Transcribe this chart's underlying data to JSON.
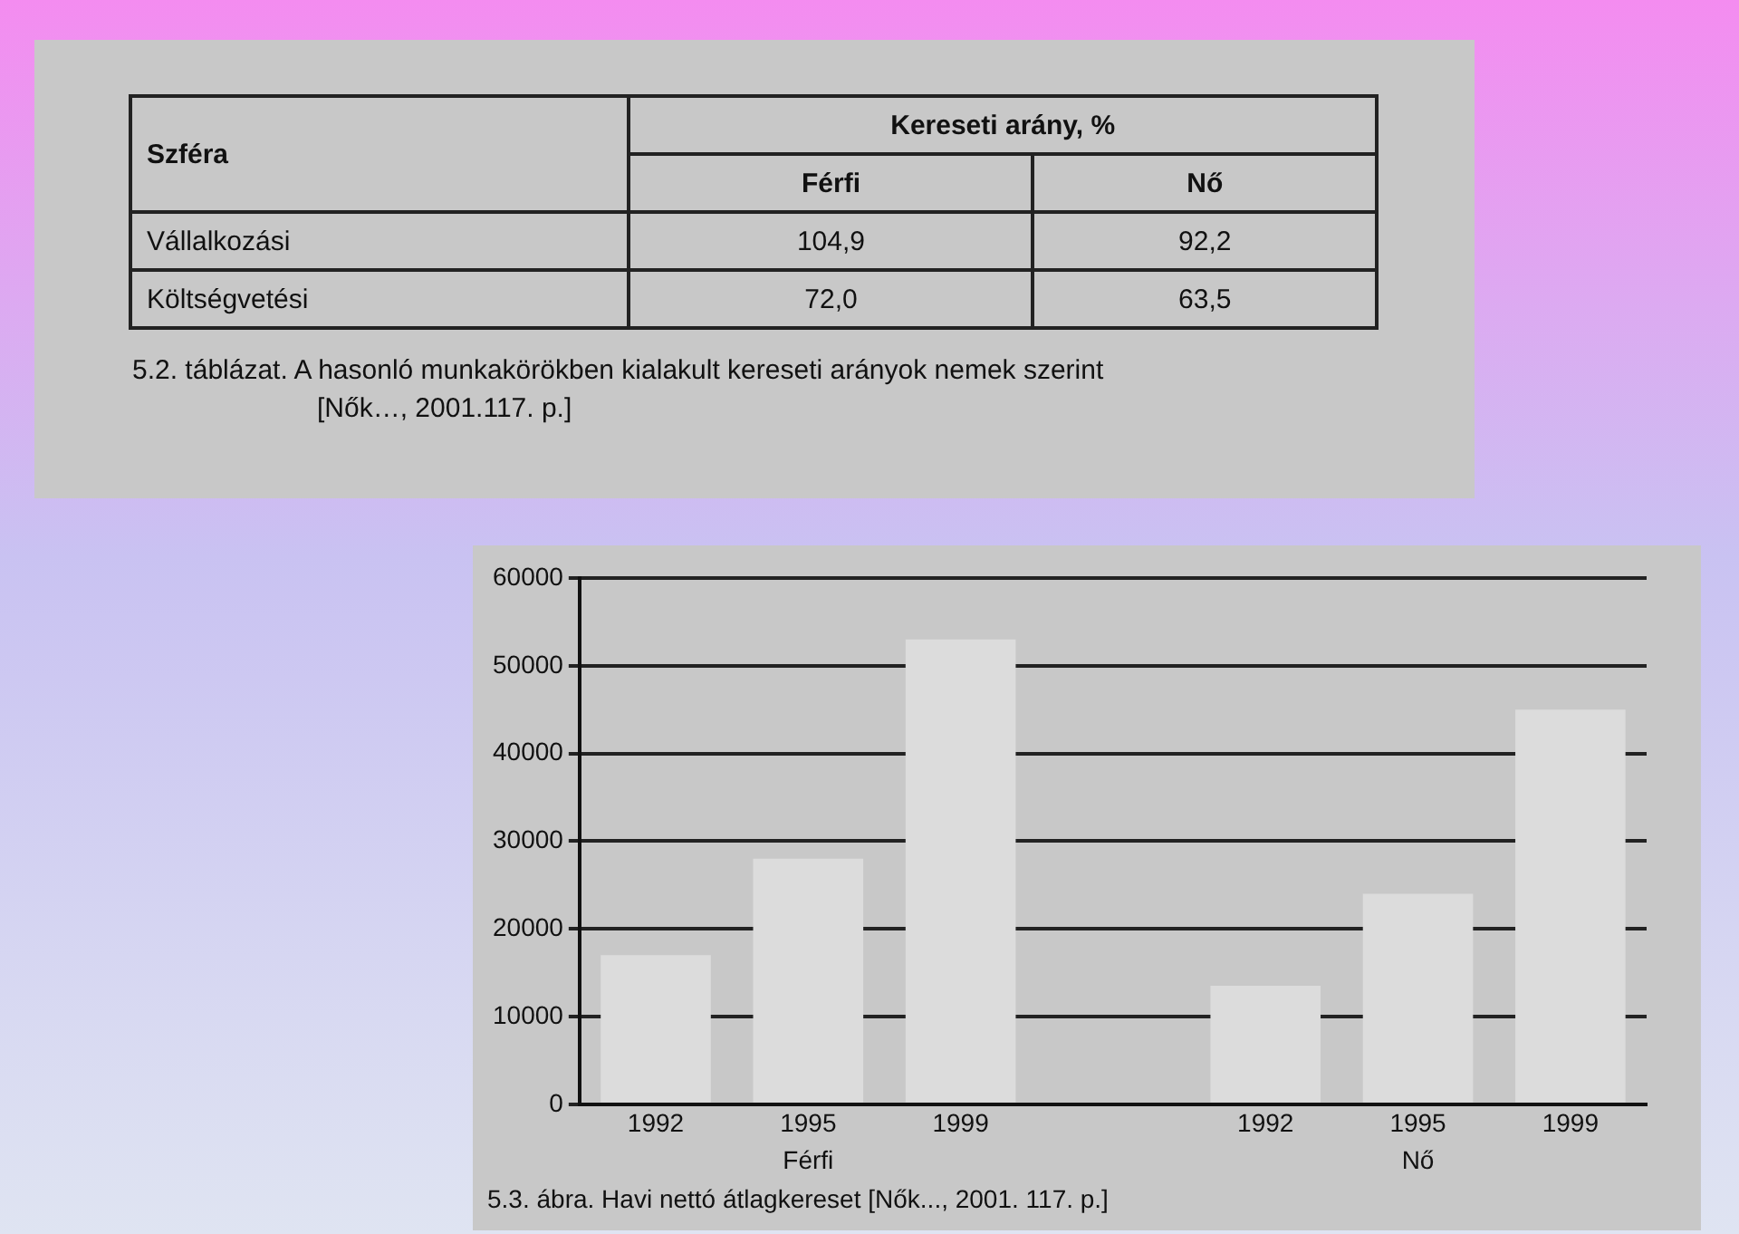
{
  "chart_data": [
    {
      "type": "other",
      "title": "5.2. táblázat. A hasonló munkakörökben kialakult kereseti arányok nemek szerint",
      "subtitle": "[Nők…, 2001.117. p.]",
      "ylabel": "Szféra",
      "xlabel": "Kereseti arány, %",
      "categories": [
        "Férfi",
        "Nő"
      ],
      "y_categories": [
        "Vállalkozási",
        "Költségvetési"
      ],
      "cell_labels": [
        [
          "104,9",
          "92,2"
        ],
        [
          "72,0",
          "63,5"
        ]
      ]
    },
    {
      "type": "bar",
      "title": "5.3. ábra. Havi nettó átlagkereset [Nők..., 2001. 117. p.]",
      "categories": [
        "1992",
        "1995",
        "1999",
        null,
        "1992",
        "1995",
        "1999"
      ],
      "values": [
        17000,
        28000,
        53000,
        null,
        13500,
        24000,
        45000
      ],
      "color": "#dcdcdc",
      "annotations": [
        "Férfi",
        "Nő"
      ],
      "ylim": [
        0,
        60000
      ],
      "yticks": [
        0,
        10000,
        20000,
        30000,
        40000,
        50000,
        60000
      ],
      "grid": "y",
      "legend": false
    }
  ]
}
